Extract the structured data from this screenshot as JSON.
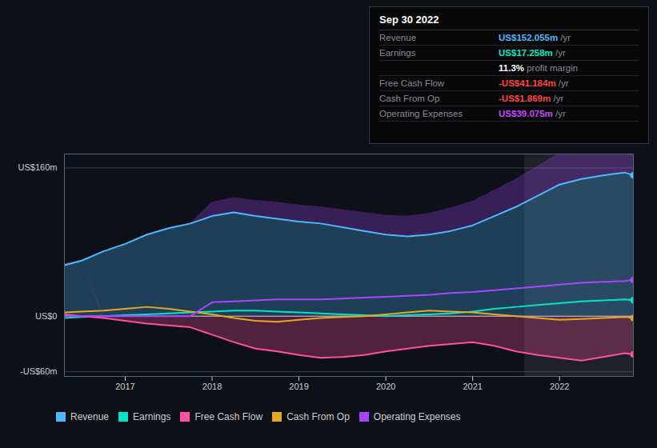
{
  "chart_data": {
    "type": "area",
    "x": [
      2016.3,
      2016.5,
      2016.75,
      2017.0,
      2017.25,
      2017.5,
      2017.75,
      2018.0,
      2018.25,
      2018.5,
      2018.75,
      2019.0,
      2019.25,
      2019.5,
      2019.75,
      2020.0,
      2020.25,
      2020.5,
      2020.75,
      2021.0,
      2021.25,
      2021.5,
      2021.75,
      2022.0,
      2022.25,
      2022.5,
      2022.75,
      2022.85
    ],
    "xlim": [
      2016.3,
      2022.85
    ],
    "xticks": [
      2017,
      2018,
      2019,
      2020,
      2021,
      2022
    ],
    "ylim": [
      -65,
      175
    ],
    "yticks": [
      {
        "value": 160,
        "label": "US$160m"
      },
      {
        "value": 0,
        "label": "US$0"
      },
      {
        "value": -60,
        "label": "-US$60m"
      }
    ],
    "grid": true,
    "legend": "bottom",
    "highlight": [
      2021.6,
      2022.85
    ],
    "series": [
      {
        "name": "Revenue",
        "color": "#4db8ff",
        "type": "area",
        "values": [
          55,
          60,
          70,
          78,
          88,
          95,
          100,
          108,
          112,
          108,
          105,
          102,
          100,
          96,
          92,
          88,
          86,
          88,
          92,
          98,
          108,
          118,
          130,
          142,
          148,
          152,
          155,
          152
        ]
      },
      {
        "name": "Earnings",
        "color": "#00e5c8",
        "type": "line",
        "values": [
          -2,
          -1,
          0,
          1,
          2,
          3,
          4,
          5,
          6,
          6,
          5,
          4,
          3,
          2,
          1,
          0,
          1,
          2,
          3,
          5,
          8,
          10,
          12,
          14,
          16,
          17,
          18,
          17.2
        ]
      },
      {
        "name": "Free Cash Flow",
        "color": "#ff4fa0",
        "type": "area",
        "values": [
          2,
          0,
          -2,
          -5,
          -8,
          -10,
          -12,
          -20,
          -28,
          -35,
          -38,
          -42,
          -45,
          -44,
          -42,
          -38,
          -35,
          -32,
          -30,
          -28,
          -32,
          -38,
          -42,
          -45,
          -48,
          -44,
          -40,
          -41.2
        ]
      },
      {
        "name": "Cash From Op",
        "color": "#e6a820",
        "type": "line",
        "values": [
          4,
          5,
          6,
          8,
          10,
          8,
          5,
          2,
          -2,
          -5,
          -6,
          -4,
          -2,
          -1,
          0,
          2,
          4,
          6,
          5,
          4,
          2,
          0,
          -2,
          -4,
          -3,
          -2,
          -1,
          -1.9
        ]
      },
      {
        "name": "Operating Expenses",
        "color": "#aa44ff",
        "type": "area",
        "values": [
          0,
          0,
          0,
          0,
          0,
          0,
          0,
          15,
          16,
          17,
          18,
          18,
          18,
          19,
          20,
          21,
          22,
          23,
          25,
          26,
          28,
          30,
          32,
          34,
          36,
          37,
          38,
          39.1
        ]
      }
    ],
    "annotations": {
      "title": "Sep 30 2022",
      "rows": [
        {
          "label": "Revenue",
          "value": "US$152.055m",
          "suffix": " /yr",
          "color": "#4db8ff"
        },
        {
          "label": "Earnings",
          "value": "US$17.258m",
          "suffix": " /yr",
          "color": "#00e5c8"
        },
        {
          "value": "11.3%",
          "suffix": " profit margin",
          "color": "#ffffff"
        },
        {
          "label": "Free Cash Flow",
          "value": "-US$41.184m",
          "suffix": " /yr",
          "color": "#ff4444"
        },
        {
          "label": "Cash From Op",
          "value": "-US$1.869m",
          "suffix": " /yr",
          "color": "#ff4444"
        },
        {
          "label": "Operating Expenses",
          "value": "US$39.075m",
          "suffix": " /yr",
          "color": "#cc44ff"
        }
      ]
    }
  }
}
